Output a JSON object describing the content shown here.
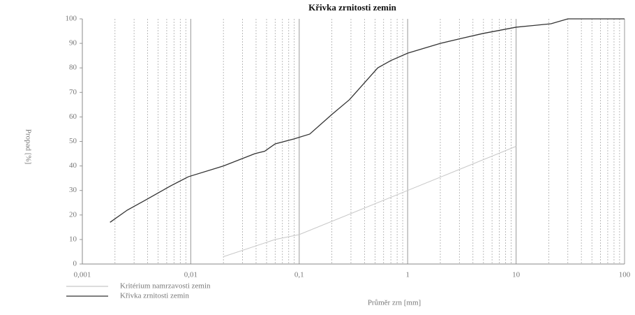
{
  "chart_data": {
    "type": "line",
    "title": "Křivka zrnitosti zemin",
    "xlabel": "Průměr zrn [mm]",
    "ylabel": "Propad [%]",
    "xscale": "log",
    "xlim": [
      0.001,
      100
    ],
    "xticks": [
      {
        "value": 0.001,
        "label": "0,001"
      },
      {
        "value": 0.01,
        "label": "0,01"
      },
      {
        "value": 0.1,
        "label": "0,1"
      },
      1,
      10,
      100
    ],
    "ylim": [
      0,
      100
    ],
    "yticks": [
      0,
      10,
      20,
      30,
      40,
      50,
      60,
      70,
      80,
      90,
      100
    ],
    "grid": true,
    "legend": "bottom-left",
    "series": [
      {
        "name": "Kritérium namrzavosti zemin",
        "color": "#c8c8c8",
        "x": [
          0.02,
          0.06,
          0.1,
          1,
          10
        ],
        "values": [
          3,
          10,
          12,
          30,
          48
        ]
      },
      {
        "name": "Křivka zrnitosti zemin",
        "color": "#333333",
        "x": [
          0.0018,
          0.0026,
          0.0038,
          0.0066,
          0.0095,
          0.02,
          0.039,
          0.048,
          0.06,
          0.089,
          0.125,
          0.2,
          0.29,
          0.53,
          0.7,
          1,
          2,
          3.1,
          4.9,
          10,
          21,
          30,
          100
        ],
        "values": [
          17,
          22,
          26,
          32,
          35.6,
          40,
          45,
          46,
          49,
          51,
          53,
          61,
          67,
          80,
          83,
          86,
          90,
          92,
          94,
          96.6,
          98,
          100,
          100
        ]
      }
    ]
  }
}
